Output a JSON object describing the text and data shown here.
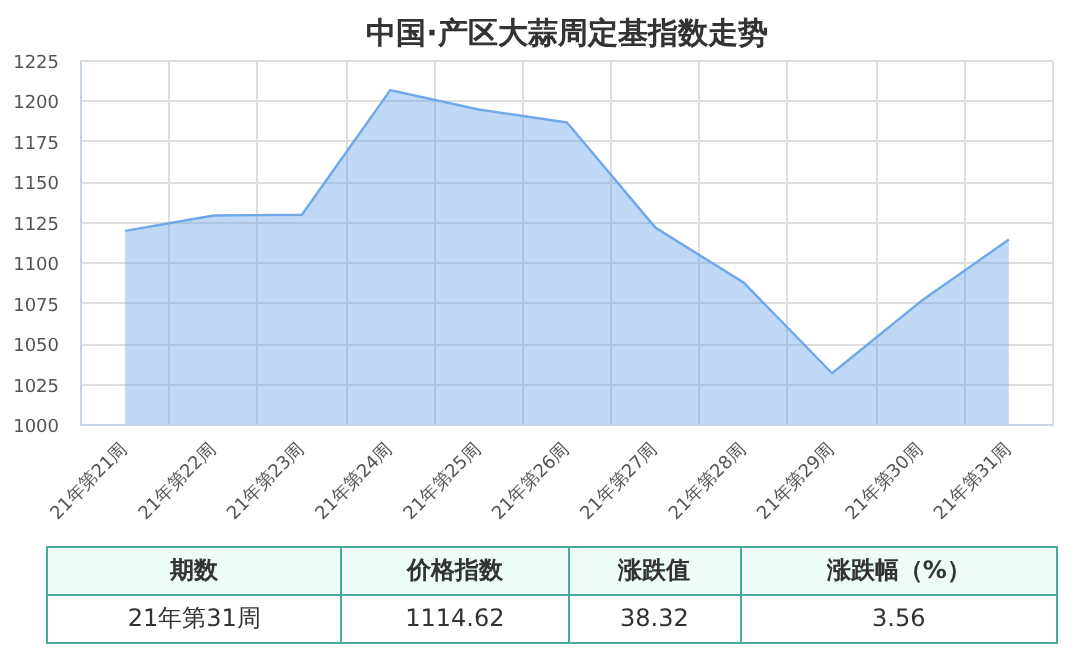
{
  "chart_data": {
    "type": "area",
    "title": "中国·产区大蒜周定基指数走势",
    "categories": [
      "21年第21周",
      "21年第22周",
      "21年第23周",
      "21年第24周",
      "21年第25周",
      "21年第26周",
      "21年第27周",
      "21年第28周",
      "21年第29周",
      "21年第30周",
      "21年第31周"
    ],
    "values": [
      1120,
      1129.5,
      1130,
      1207,
      1195,
      1187,
      1122,
      1088,
      1032,
      1076.3,
      1114.62
    ],
    "color": "#6fa8e8",
    "ylim": [
      1000,
      1225
    ],
    "yticks": [
      1000,
      1025,
      1050,
      1075,
      1100,
      1125,
      1150,
      1175,
      1200,
      1225
    ],
    "grid": true,
    "annotations": [
      "期数",
      "价格指数",
      "涨跌值",
      "涨跌幅（%）",
      "21年第31周",
      "1114.62",
      "38.32",
      "3.56"
    ]
  }
}
